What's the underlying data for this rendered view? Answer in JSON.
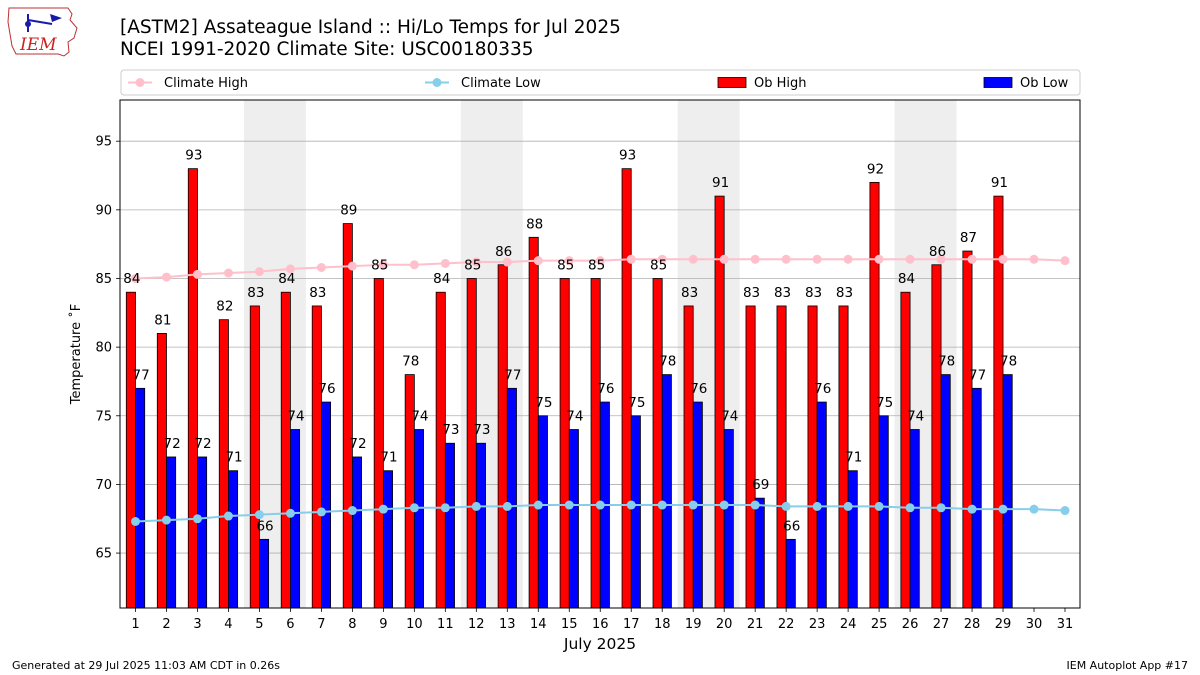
{
  "logo": {
    "text": "IEM"
  },
  "title": {
    "line1": "[ASTM2] Assateague Island :: Hi/Lo Temps for Jul 2025",
    "line2": "NCEI 1991-2020 Climate Site: USC00180335"
  },
  "footer": {
    "left": "Generated at 29 Jul 2025 11:03 AM CDT in 0.26s",
    "right": "IEM Autoplot App #17"
  },
  "colors": {
    "ob_high": "#ff0000",
    "ob_low": "#0000ff",
    "climate_high": "#ffc0cb",
    "climate_low": "#87ceeb",
    "weekend_shade": "#eeeeee",
    "grid": "#b0b0b0"
  },
  "chart_data": {
    "type": "bar",
    "xlabel": "July 2025",
    "ylabel": "Temperature ˚F",
    "ylim": [
      61,
      98
    ],
    "yticks": [
      65,
      70,
      75,
      80,
      85,
      90,
      95
    ],
    "grid": "horizontal",
    "legend_position": "top",
    "categories": [
      "1",
      "2",
      "3",
      "4",
      "5",
      "6",
      "7",
      "8",
      "9",
      "10",
      "11",
      "12",
      "13",
      "14",
      "15",
      "16",
      "17",
      "18",
      "19",
      "20",
      "21",
      "22",
      "23",
      "24",
      "25",
      "26",
      "27",
      "28",
      "29",
      "30",
      "31"
    ],
    "weekend_days": [
      [
        5,
        6
      ],
      [
        12,
        13
      ],
      [
        19,
        20
      ],
      [
        26,
        27
      ]
    ],
    "series": [
      {
        "name": "Climate High",
        "kind": "line",
        "values": [
          85,
          85.1,
          85.3,
          85.4,
          85.5,
          85.7,
          85.8,
          85.9,
          86,
          86,
          86.1,
          86.2,
          86.2,
          86.3,
          86.3,
          86.3,
          86.4,
          86.4,
          86.4,
          86.4,
          86.4,
          86.4,
          86.4,
          86.4,
          86.4,
          86.4,
          86.4,
          86.4,
          86.4,
          86.4,
          86.3
        ]
      },
      {
        "name": "Climate Low",
        "kind": "line",
        "values": [
          67.3,
          67.4,
          67.5,
          67.7,
          67.8,
          67.9,
          68,
          68.1,
          68.2,
          68.3,
          68.3,
          68.4,
          68.4,
          68.5,
          68.5,
          68.5,
          68.5,
          68.5,
          68.5,
          68.5,
          68.5,
          68.4,
          68.4,
          68.4,
          68.4,
          68.3,
          68.3,
          68.2,
          68.2,
          68.2,
          68.1
        ]
      },
      {
        "name": "Ob High",
        "kind": "bar",
        "values": [
          84,
          81,
          93,
          82,
          83,
          84,
          83,
          89,
          85,
          78,
          84,
          85,
          86,
          88,
          85,
          85,
          93,
          85,
          83,
          91,
          83,
          83,
          83,
          83,
          92,
          84,
          86,
          87,
          91,
          null,
          null
        ]
      },
      {
        "name": "Ob Low",
        "kind": "bar",
        "values": [
          77,
          72,
          72,
          71,
          66,
          74,
          76,
          72,
          71,
          74,
          73,
          73,
          77,
          75,
          74,
          76,
          75,
          78,
          76,
          74,
          69,
          66,
          76,
          71,
          75,
          74,
          78,
          77,
          78,
          null,
          null
        ]
      }
    ]
  }
}
